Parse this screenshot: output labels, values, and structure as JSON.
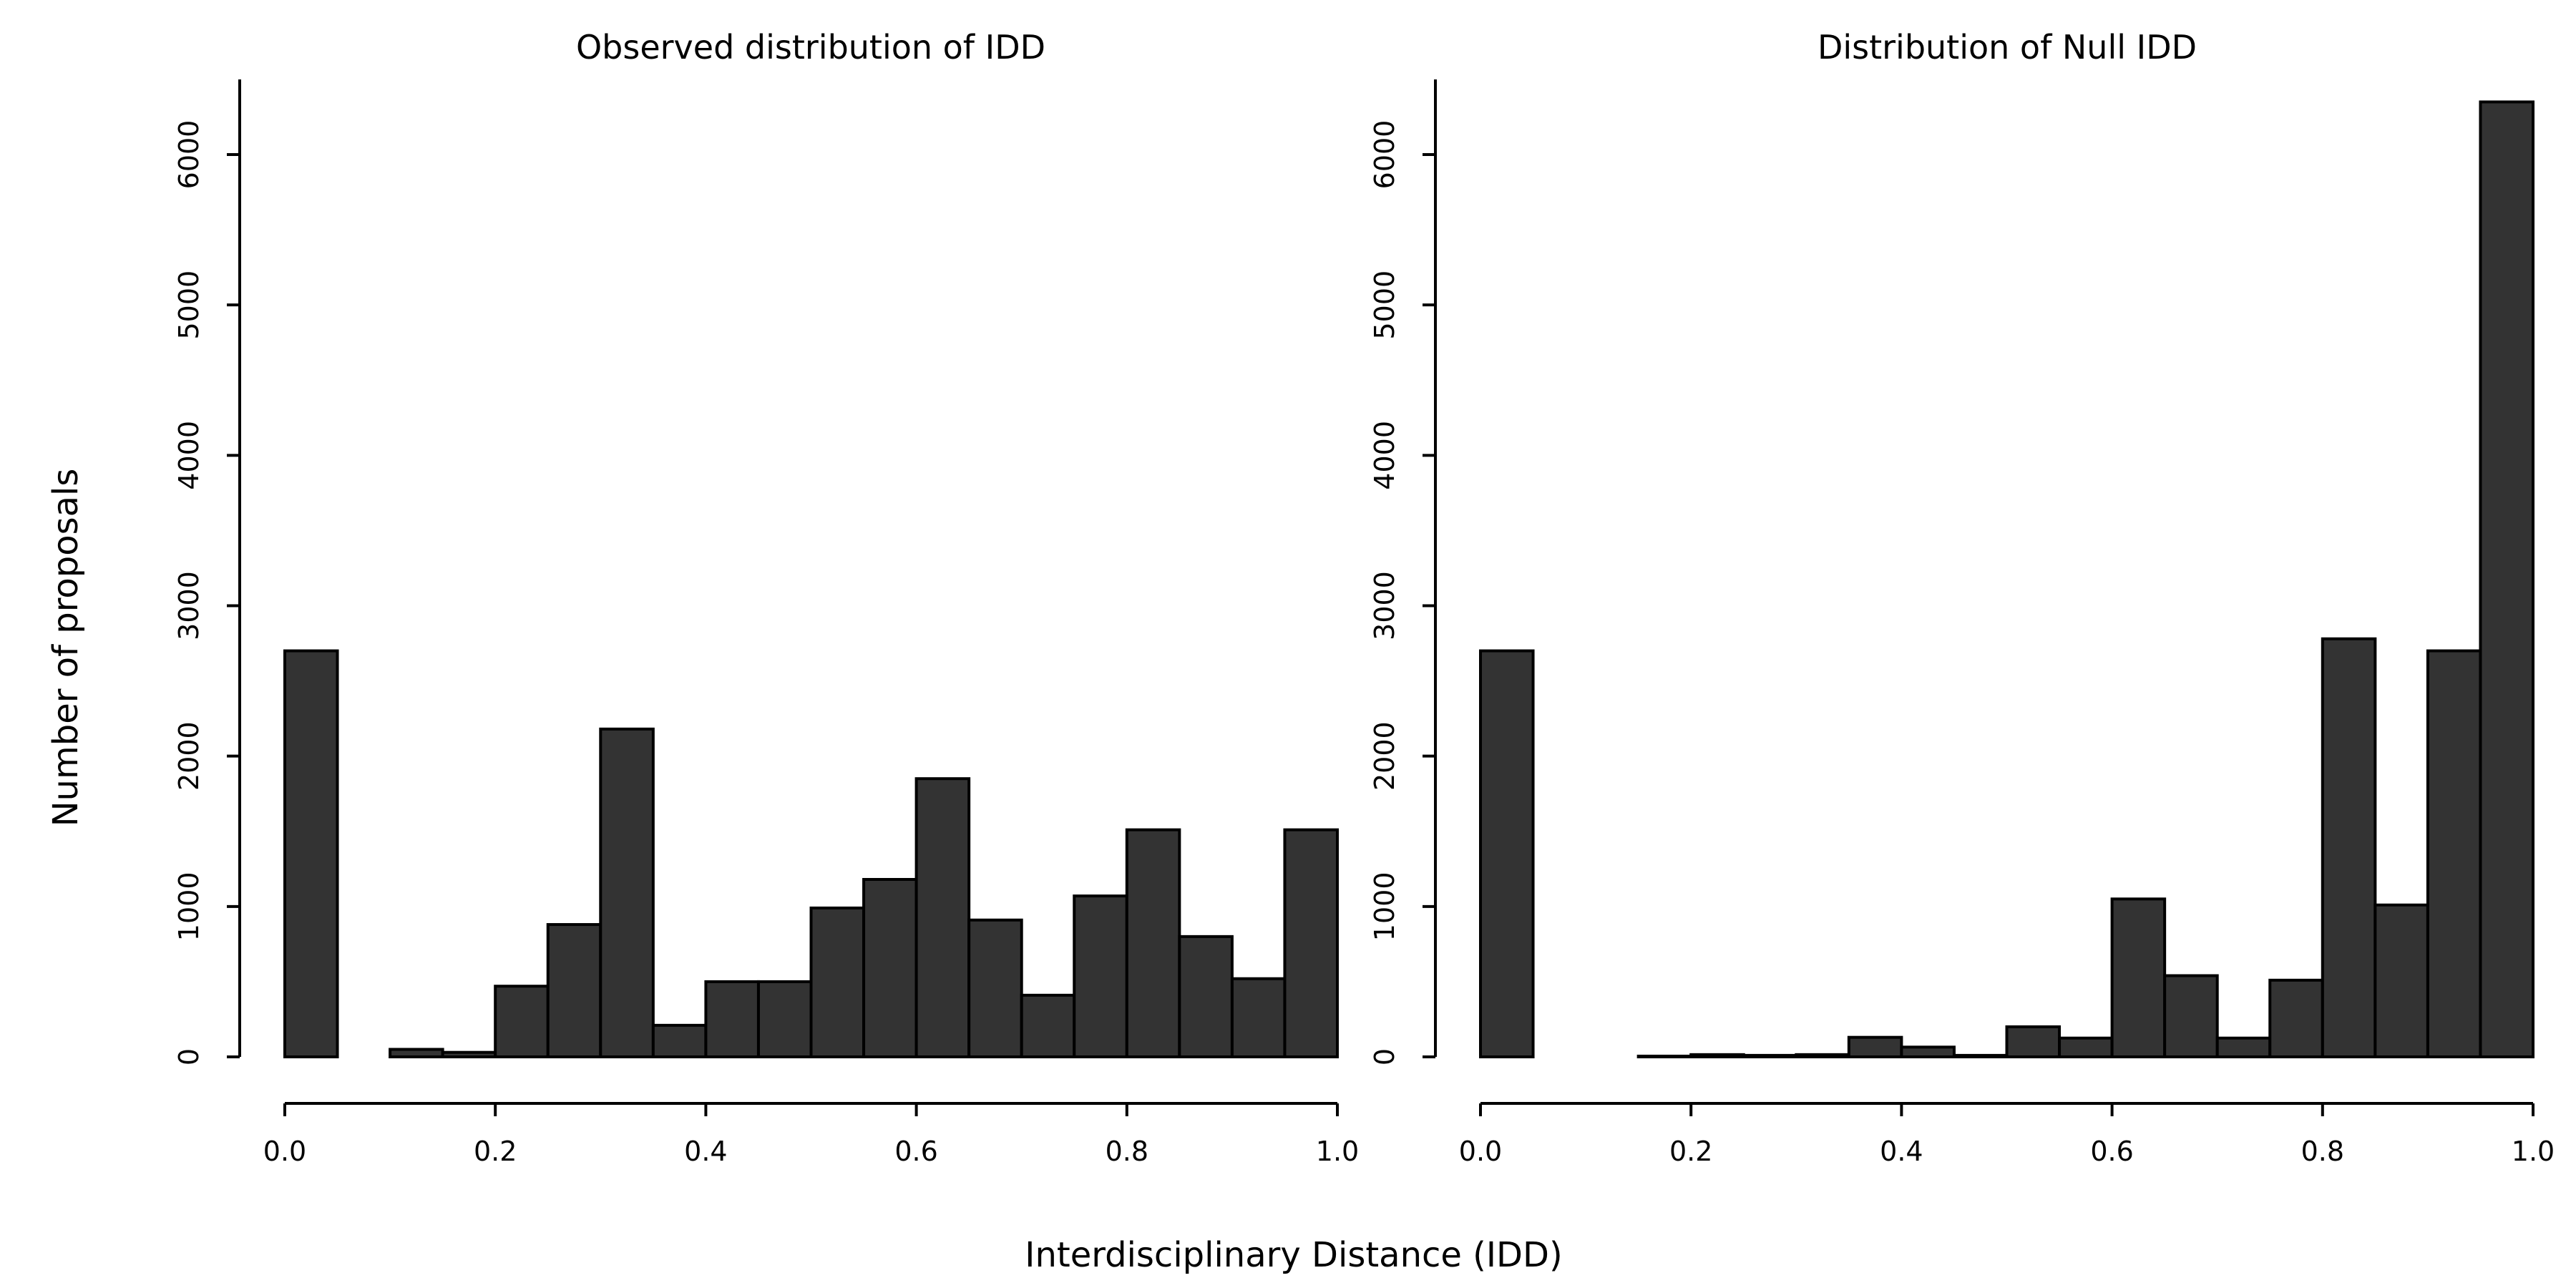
{
  "figure": {
    "shared_xlabel": "Interdisciplinary Distance (IDD)",
    "shared_ylabel": "Number of proposals"
  },
  "chart_data": [
    {
      "type": "bar",
      "title": "Observed distribution of IDD",
      "xlabel": "Interdisciplinary Distance (IDD)",
      "ylabel": "Number of proposals",
      "bin_edges": [
        0.0,
        0.05,
        0.1,
        0.15,
        0.2,
        0.25,
        0.3,
        0.35,
        0.4,
        0.45,
        0.5,
        0.55,
        0.6,
        0.65,
        0.7,
        0.75,
        0.8,
        0.85,
        0.9,
        0.95,
        1.0
      ],
      "values": [
        2700,
        0,
        50,
        30,
        470,
        880,
        2180,
        210,
        500,
        500,
        990,
        1180,
        1850,
        910,
        410,
        1070,
        1510,
        800,
        520,
        1510
      ],
      "xlim": [
        0,
        1
      ],
      "ylim": [
        0,
        6000
      ],
      "xticks": [
        0.0,
        0.2,
        0.4,
        0.6,
        0.8,
        1.0
      ],
      "xtick_labels": [
        "0.0",
        "0.2",
        "0.4",
        "0.6",
        "0.8",
        "1.0"
      ],
      "yticks": [
        0,
        1000,
        2000,
        3000,
        4000,
        5000,
        6000
      ],
      "ytick_labels": [
        "0",
        "1000",
        "2000",
        "3000",
        "4000",
        "5000",
        "6000"
      ],
      "grid": false,
      "bar_color": "#333333"
    },
    {
      "type": "bar",
      "title": "Distribution of Null IDD",
      "xlabel": "Interdisciplinary Distance (IDD)",
      "ylabel": "Number of proposals",
      "bin_edges": [
        0.0,
        0.05,
        0.1,
        0.15,
        0.2,
        0.25,
        0.3,
        0.35,
        0.4,
        0.45,
        0.5,
        0.55,
        0.6,
        0.65,
        0.7,
        0.75,
        0.8,
        0.85,
        0.9,
        0.95,
        1.0
      ],
      "values": [
        2700,
        0,
        0,
        5,
        15,
        10,
        15,
        130,
        65,
        10,
        200,
        125,
        1050,
        540,
        125,
        510,
        2780,
        1010,
        2700,
        6350
      ],
      "xlim": [
        0,
        1
      ],
      "ylim": [
        0,
        6000
      ],
      "xticks": [
        0.0,
        0.2,
        0.4,
        0.6,
        0.8,
        1.0
      ],
      "xtick_labels": [
        "0.0",
        "0.2",
        "0.4",
        "0.6",
        "0.8",
        "1.0"
      ],
      "yticks": [
        0,
        1000,
        2000,
        3000,
        4000,
        5000,
        6000
      ],
      "ytick_labels": [
        "0",
        "1000",
        "2000",
        "3000",
        "4000",
        "5000",
        "6000"
      ],
      "grid": false,
      "bar_color": "#333333"
    }
  ]
}
